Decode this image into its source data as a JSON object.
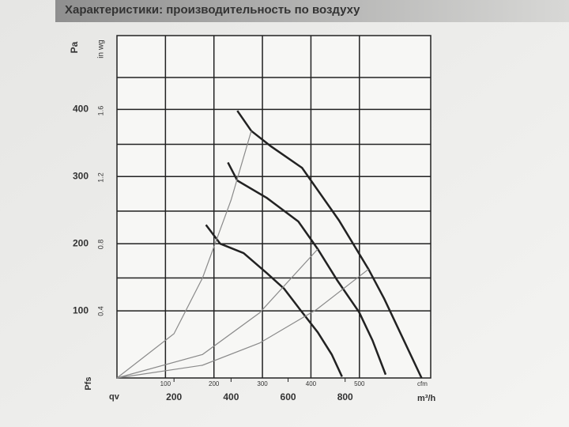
{
  "chart_data": {
    "type": "line",
    "title": "Характеристики: производительность по воздуху",
    "y_label": "Pa",
    "y2_label": "in wg",
    "y_symbol": "Pfs",
    "x_symbol": "qv",
    "x_unit": "m³/h",
    "x2_unit": "cfm",
    "xlim": [
      0,
      1100
    ],
    "xticks": [
      200,
      400,
      600,
      800
    ],
    "x2lim": [
      0,
      647
    ],
    "x2ticks": [
      100,
      200,
      300,
      400,
      500
    ],
    "ylim": [
      0,
      510
    ],
    "yticks": [
      100,
      200,
      300,
      400
    ],
    "y2lim": [
      0,
      2.05
    ],
    "y2ticks": [
      0.4,
      0.8,
      1.2,
      1.6
    ],
    "grid": true,
    "series": [
      {
        "color": "#222222",
        "x": [
          422,
          471,
          540,
          649,
          778,
          882,
          937,
          1068
        ],
        "values": [
          398,
          368,
          345,
          313,
          235,
          162,
          118,
          0
        ]
      },
      {
        "color": "#222222",
        "x": [
          389,
          422,
          526,
          636,
          704,
          773,
          849,
          896,
          942
        ],
        "values": [
          321,
          294,
          268,
          233,
          192,
          145,
          98,
          56,
          5
        ]
      },
      {
        "color": "#222222",
        "x": [
          312,
          362,
          444,
          526,
          586,
          649,
          704,
          753,
          789
        ],
        "values": [
          228,
          200,
          186,
          156,
          133,
          98,
          68,
          35,
          2
        ]
      },
      {
        "color": "#8a8a8a",
        "x": [
          0,
          200,
          300,
          400,
          471
        ],
        "values": [
          0,
          66,
          149,
          265,
          368
        ]
      },
      {
        "color": "#8a8a8a",
        "x": [
          0,
          300,
          500,
          704
        ],
        "values": [
          0,
          35,
          97,
          192
        ]
      },
      {
        "color": "#8a8a8a",
        "x": [
          0,
          300,
          500,
          700,
          882
        ],
        "values": [
          0,
          19,
          52,
          102,
          162
        ]
      }
    ]
  }
}
